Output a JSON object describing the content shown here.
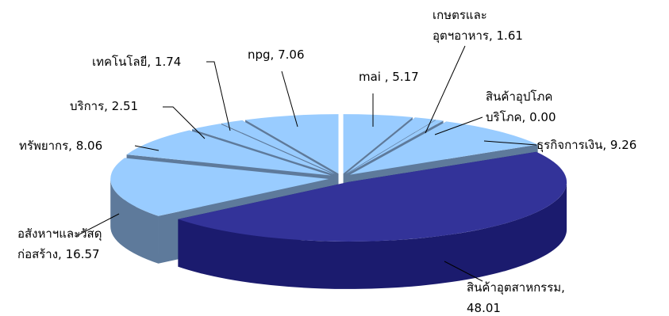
{
  "chart_data": {
    "type": "pie",
    "style": "3d-exploded",
    "title": "",
    "slices": [
      {
        "name": "mai",
        "value": 5.17,
        "label_lines": [
          "mai ,  5.17"
        ],
        "color": "#99ccff"
      },
      {
        "name": "เกษตรและอุตฯอาหาร",
        "value": 1.61,
        "label_lines": [
          "เกษตรและ",
          "อุตฯอาหาร,  1.61"
        ],
        "color": "#99ccff"
      },
      {
        "name": "สินค้าอุปโภคบริโภค",
        "value": 0.0,
        "label_lines": [
          "สินค้าอุปโภค",
          "บริโภค,  0.00"
        ],
        "color": "#99ccff"
      },
      {
        "name": "ธุรกิจการเงิน",
        "value": 9.26,
        "label_lines": [
          "ธุรกิจการเงิน,  9.26"
        ],
        "color": "#99ccff"
      },
      {
        "name": "สินค้าอุตสาหกรรม",
        "value": 48.01,
        "label_lines": [
          "สินค้าอุตสาหกรรม,",
          "48.01"
        ],
        "color": "#333399"
      },
      {
        "name": "อสังหาฯและวัสดุก่อสร้าง",
        "value": 16.57,
        "label_lines": [
          "อสังหาฯและวัสดุ",
          "ก่อสร้าง,  16.57"
        ],
        "color": "#99ccff"
      },
      {
        "name": "ทรัพยากร",
        "value": 8.06,
        "label_lines": [
          "ทรัพยากร,  8.06"
        ],
        "color": "#99ccff"
      },
      {
        "name": "บริการ",
        "value": 2.51,
        "label_lines": [
          "บริการ,  2.51"
        ],
        "color": "#99ccff"
      },
      {
        "name": "เทคโนโลยี",
        "value": 1.74,
        "label_lines": [
          "เทคโนโลยี,  1.74"
        ],
        "color": "#99ccff"
      },
      {
        "name": "npg",
        "value": 7.06,
        "label_lines": [
          "npg,  7.06"
        ],
        "color": "#99ccff"
      }
    ],
    "colors": {
      "light_top": "#99ccff",
      "light_side": "#5e7a9b",
      "dark_top": "#333399",
      "dark_side": "#1b1b6e",
      "leader": "#000000"
    }
  }
}
